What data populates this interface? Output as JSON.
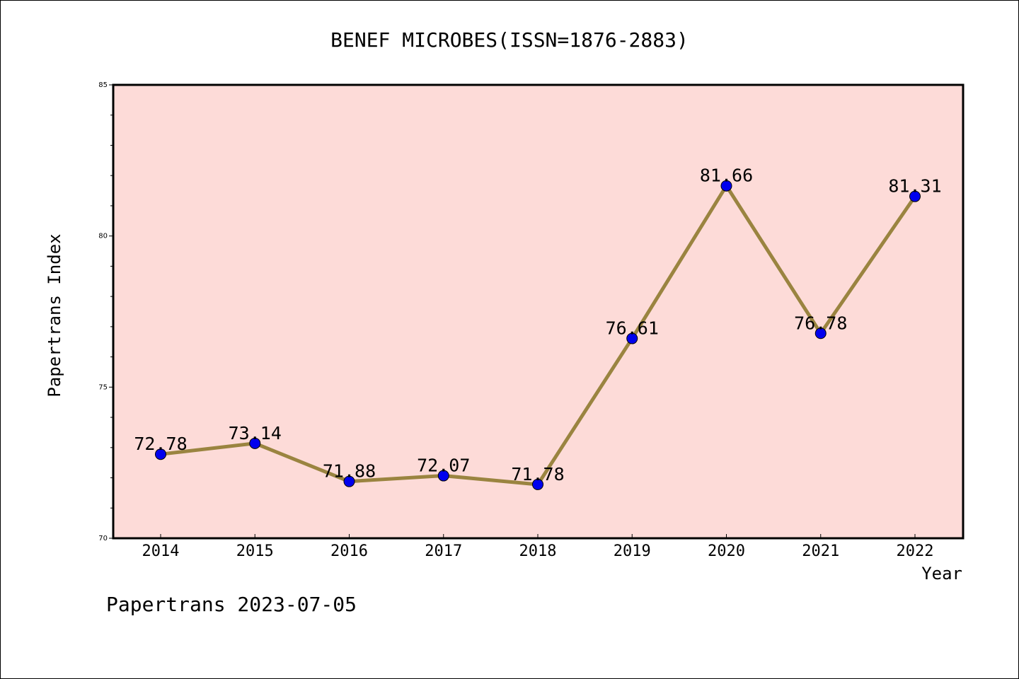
{
  "chart_data": {
    "type": "line",
    "title": "BENEF MICROBES(ISSN=1876-2883)",
    "xlabel": "Year",
    "ylabel": "Papertrans Index",
    "categories": [
      "2014",
      "2015",
      "2016",
      "2017",
      "2018",
      "2019",
      "2020",
      "2021",
      "2022"
    ],
    "values": [
      72.78,
      73.14,
      71.88,
      72.07,
      71.78,
      76.61,
      81.66,
      76.78,
      81.31
    ],
    "data_labels": [
      "72.78",
      "73.14",
      "71.88",
      "72.07",
      "71.78",
      "76.61",
      "81.66",
      "76.78",
      "81.31"
    ],
    "ylim": [
      70,
      85
    ],
    "yticks": [
      "70",
      "75",
      "80",
      "85"
    ],
    "grid": false,
    "legend": "none",
    "colors": {
      "plot_background": "#fddbd8",
      "line": "#9a8440",
      "marker": "#0000ee"
    }
  },
  "footer": "Papertrans 2023-07-05"
}
